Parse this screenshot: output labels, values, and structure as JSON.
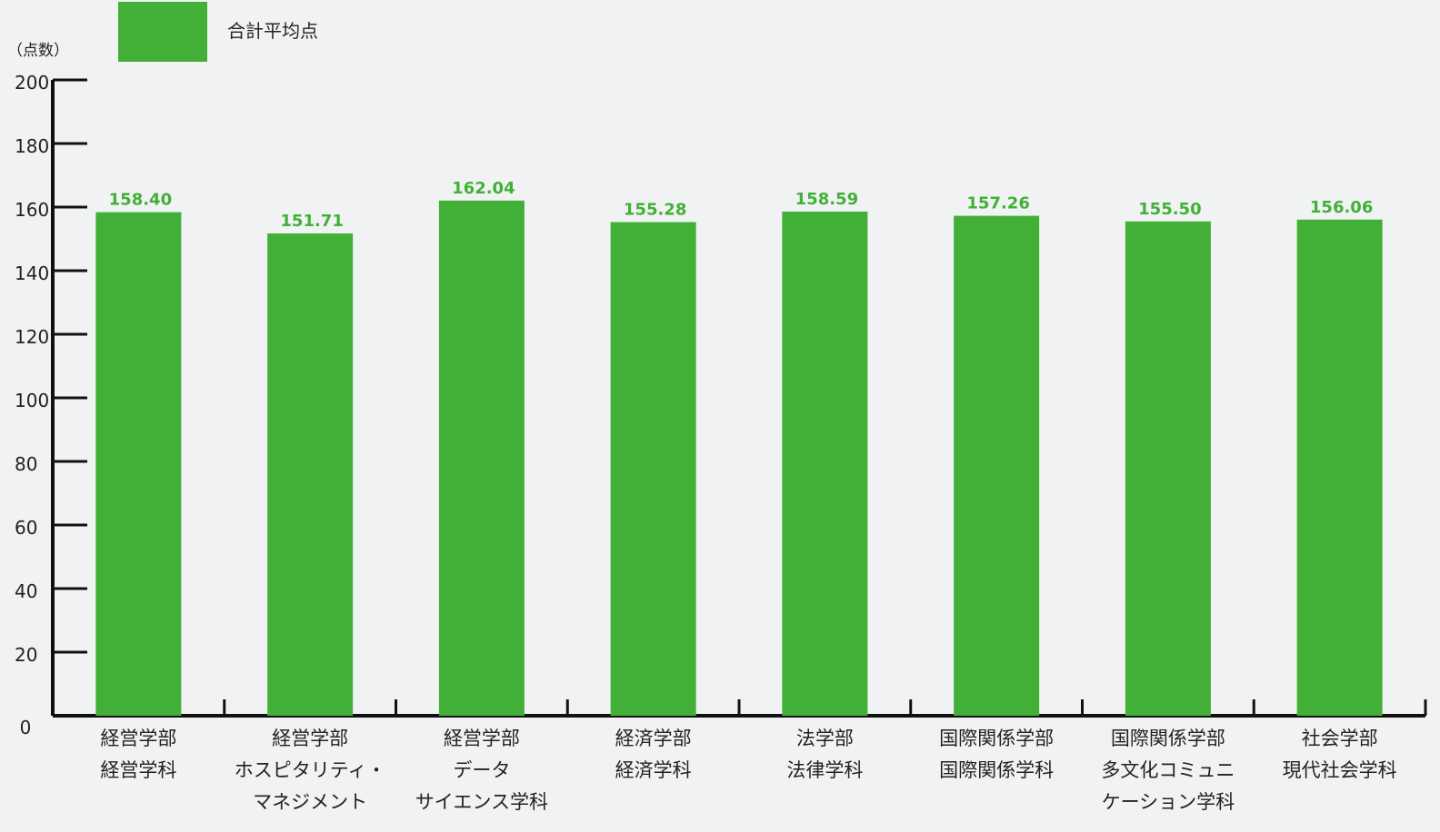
{
  "chart_data": {
    "type": "bar",
    "yunit": "（点数）",
    "legend": {
      "label": "合計平均点",
      "position": "top-left"
    },
    "ylim": [
      0,
      200
    ],
    "yticks": [
      "0",
      "20",
      "40",
      "60",
      "80",
      "100",
      "120",
      "140",
      "160",
      "180",
      "200"
    ],
    "categories": [
      [
        "経営学部",
        "経営学科"
      ],
      [
        "経営学部",
        "ホスピタリティ・",
        "マネジメント"
      ],
      [
        "経営学部",
        "データ",
        "サイエンス学科"
      ],
      [
        "経済学部",
        "経済学科"
      ],
      [
        "法学部",
        "法律学科"
      ],
      [
        "国際関係学部",
        "国際関係学科"
      ],
      [
        "国際関係学部",
        "多文化コミュニ",
        "ケーション学科"
      ],
      [
        "社会学部",
        "現代社会学科"
      ]
    ],
    "values": [
      158.4,
      151.71,
      162.04,
      155.28,
      158.59,
      157.26,
      155.5,
      156.06
    ],
    "data_labels": [
      "158.40",
      "151.71",
      "162.04",
      "155.28",
      "158.59",
      "157.26",
      "155.50",
      "156.06"
    ],
    "grid": false
  },
  "colors": {
    "bar": "#42b036",
    "label": "#42b036",
    "axis": "#111111",
    "background": "#f1f2f4"
  }
}
